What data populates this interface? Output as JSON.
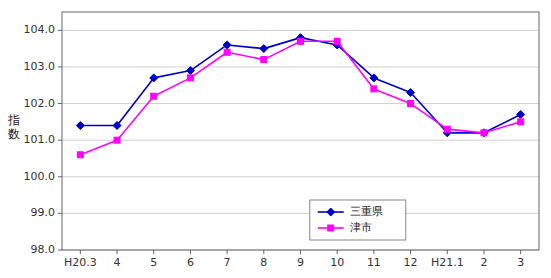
{
  "chart_data": {
    "type": "line",
    "ylabel": "指\n数",
    "categories": [
      "H20.3",
      "4",
      "5",
      "6",
      "7",
      "8",
      "9",
      "10",
      "11",
      "12",
      "H21.1",
      "2",
      "3"
    ],
    "series": [
      {
        "name": "三重県",
        "color": "#0000CD",
        "marker": "diamond",
        "values": [
          101.4,
          101.4,
          102.7,
          102.9,
          103.6,
          103.5,
          103.8,
          103.6,
          102.7,
          102.3,
          101.2,
          101.2,
          101.7
        ]
      },
      {
        "name": "津市",
        "color": "#FF00FF",
        "marker": "square",
        "values": [
          100.6,
          101.0,
          102.2,
          102.7,
          103.4,
          103.2,
          103.7,
          103.7,
          102.4,
          102.0,
          101.3,
          101.2,
          101.5
        ]
      }
    ],
    "ylim": [
      98.0,
      104.5
    ],
    "yticks": [
      {
        "value": 98,
        "label": "98.0"
      },
      {
        "value": 99,
        "label": "99.0"
      },
      {
        "value": 100,
        "label": "100.0"
      },
      {
        "value": 101,
        "label": "101.0"
      },
      {
        "value": 102,
        "label": "102.0"
      },
      {
        "value": 103,
        "label": "103.0"
      },
      {
        "value": 104,
        "label": "104.0"
      }
    ],
    "grid": true,
    "legend": "lower center"
  }
}
